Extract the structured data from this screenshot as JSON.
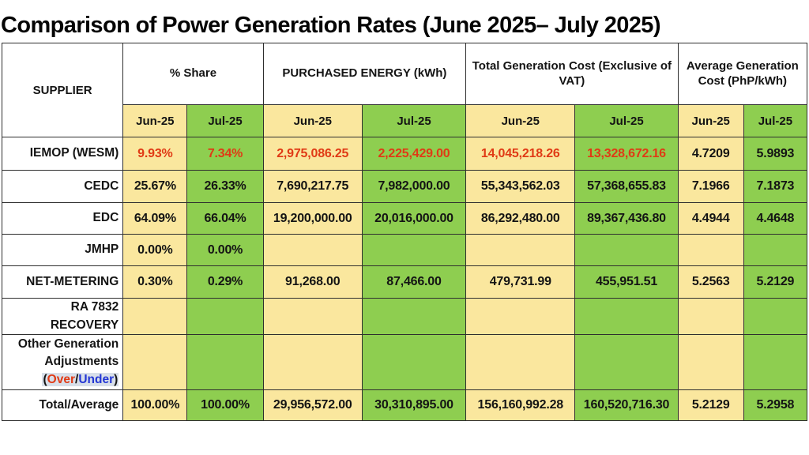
{
  "title": "Comparison of Power Generation Rates (June 2025– July 2025)",
  "colors": {
    "jun_column_bg": "#FAE79E",
    "jul_column_bg": "#8ECE50",
    "alert_red": "#E03A15",
    "under_blue": "#2336D4",
    "border": "#2e2e2e"
  },
  "table": {
    "supplier_header": "SUPPLIER",
    "groups": [
      {
        "label": "% Share"
      },
      {
        "label": "PURCHASED ENERGY (kWh)"
      },
      {
        "label": "Total Generation Cost (Exclusive of VAT)"
      },
      {
        "label": "Average Generation Cost (PhP/kWh)"
      }
    ],
    "month_headers": [
      "Jun-25",
      "Jul-25"
    ],
    "over_under": {
      "open": "(",
      "over": "Over",
      "slash": "/",
      "under": "Under",
      "close": ")"
    },
    "rows": [
      {
        "supplier": "IEMOP (WESM)",
        "cells": [
          "9.93%",
          "7.34%",
          "2,975,086.25",
          "2,225,429.00",
          "14,045,218.26",
          "13,328,672.16",
          "4.7209",
          "5.9893"
        ]
      },
      {
        "supplier": "CEDC",
        "cells": [
          "25.67%",
          "26.33%",
          "7,690,217.75",
          "7,982,000.00",
          "55,343,562.03",
          "57,368,655.83",
          "7.1966",
          "7.1873"
        ]
      },
      {
        "supplier": "EDC",
        "cells": [
          "64.09%",
          "66.04%",
          "19,200,000.00",
          "20,016,000.00",
          "86,292,480.00",
          "89,367,436.80",
          "4.4944",
          "4.4648"
        ]
      },
      {
        "supplier": "JMHP",
        "cells": [
          "0.00%",
          "0.00%",
          "",
          "",
          "",
          "",
          "",
          ""
        ]
      },
      {
        "supplier": "NET-METERING",
        "cells": [
          "0.30%",
          "0.29%",
          "91,268.00",
          "87,466.00",
          "479,731.99",
          "455,951.51",
          "5.2563",
          "5.2129"
        ]
      },
      {
        "lines": [
          "RA 7832",
          "RECOVERY"
        ],
        "cells": [
          "",
          "",
          "",
          "",
          "",
          "",
          "",
          ""
        ]
      },
      {
        "lines": [
          "Other Generation",
          "Adjustments"
        ],
        "cells": [
          "",
          "",
          "",
          "",
          "",
          "",
          "",
          ""
        ]
      },
      {
        "supplier": "Total/Average",
        "cells": [
          "100.00%",
          "100.00%",
          "29,956,572.00",
          "30,310,895.00",
          "156,160,992.28",
          "160,520,716.30",
          "5.2129",
          "5.2958"
        ]
      }
    ]
  }
}
